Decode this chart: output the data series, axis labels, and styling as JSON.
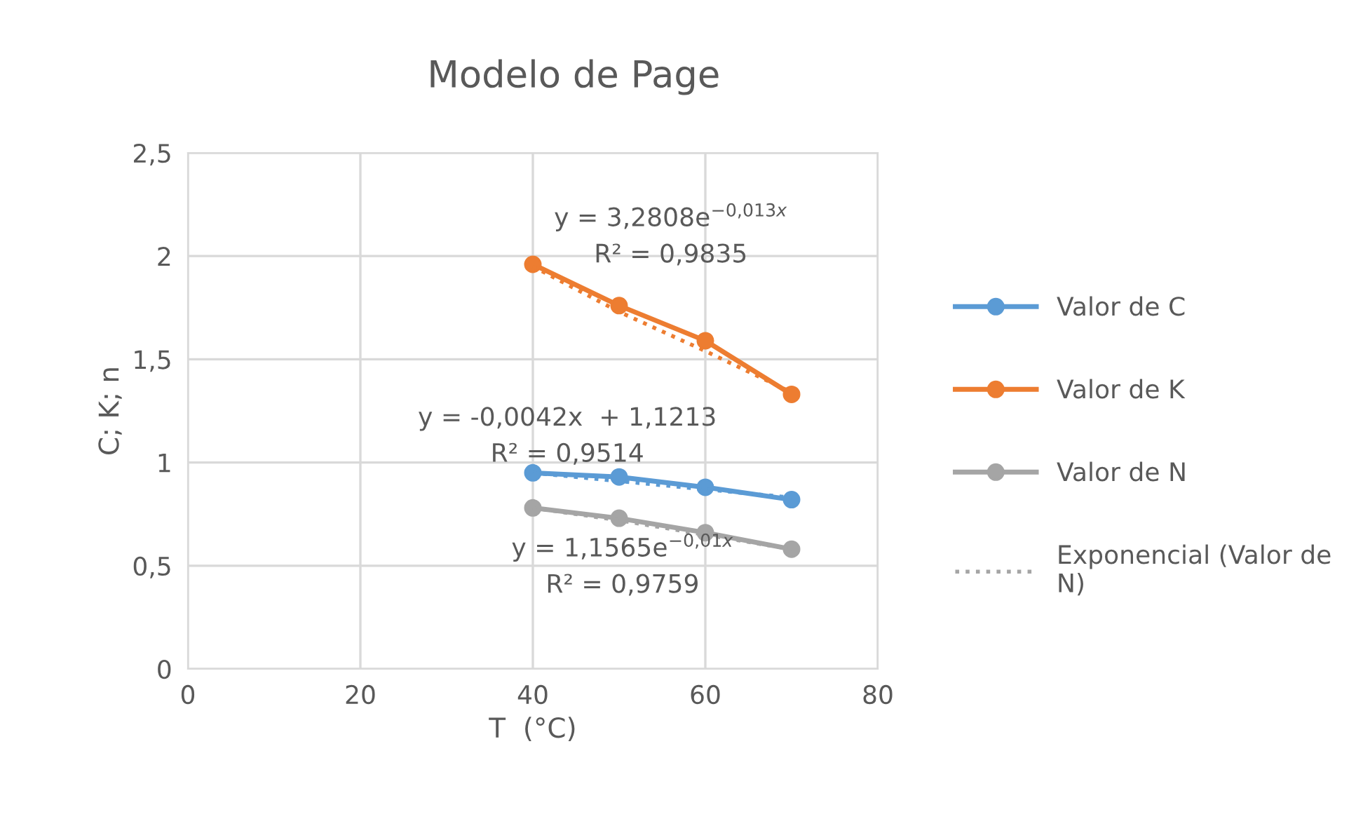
{
  "chart_data": {
    "type": "line",
    "title": "Modelo de Page",
    "xlabel": "T  (°C)",
    "ylabel": "C; K; n",
    "xlim": [
      0,
      80
    ],
    "xticks": [
      0,
      20,
      40,
      60,
      80
    ],
    "ylim": [
      0,
      2.5
    ],
    "yticks": [
      0,
      {
        "value": 0.5,
        "label": "0,5"
      },
      1,
      {
        "value": 1.5,
        "label": "1,5"
      },
      2,
      {
        "value": 2.5,
        "label": "2,5"
      }
    ],
    "grid": true,
    "legend": "right",
    "marker": "circle",
    "series": [
      {
        "name": "Valor de C",
        "color": "#5b9bd5",
        "x": [
          40,
          50,
          60,
          70
        ],
        "values": [
          0.95,
          0.93,
          0.88,
          0.82
        ]
      },
      {
        "name": "Valor de K",
        "color": "#ed7d31",
        "x": [
          40,
          50,
          60,
          70
        ],
        "values": [
          1.96,
          1.76,
          1.59,
          1.33
        ]
      },
      {
        "name": "Valor de N",
        "color": "#a5a5a5",
        "x": [
          40,
          50,
          60,
          70
        ],
        "values": [
          0.78,
          0.73,
          0.66,
          0.58
        ]
      },
      {
        "color": "#5b9bd5",
        "line_style": "dotted",
        "marker": "none",
        "x": [
          40,
          50,
          60,
          70
        ],
        "values": [
          0.95,
          0.91,
          0.87,
          0.83
        ]
      },
      {
        "color": "#ed7d31",
        "line_style": "dotted",
        "marker": "none",
        "x": [
          40,
          50,
          60,
          70
        ],
        "values": [
          1.95,
          1.73,
          1.54,
          1.34
        ]
      },
      {
        "name": "Exponencial (Valor de N)",
        "color": "#a5a5a5",
        "line_style": "dotted",
        "marker": "none",
        "x": [
          40,
          50,
          60,
          70
        ],
        "values": [
          0.78,
          0.72,
          0.65,
          0.58
        ]
      }
    ],
    "annotations": [
      "y = 3,2808e$^{−0,013x}$\nR² = 0,9835",
      "y = -0,0042x  + 1,1213\nR² = 0,9514",
      "y = 1,1565e$^{−0,01x}$\nR² = 0,9759"
    ]
  }
}
